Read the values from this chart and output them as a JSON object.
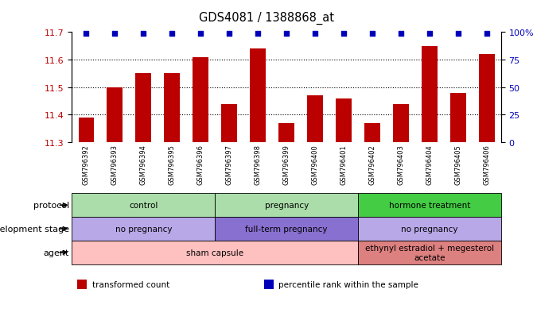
{
  "title": "GDS4081 / 1388868_at",
  "samples": [
    "GSM796392",
    "GSM796393",
    "GSM796394",
    "GSM796395",
    "GSM796396",
    "GSM796397",
    "GSM796398",
    "GSM796399",
    "GSM796400",
    "GSM796401",
    "GSM796402",
    "GSM796403",
    "GSM796404",
    "GSM796405",
    "GSM796406"
  ],
  "bar_values": [
    11.39,
    11.5,
    11.55,
    11.55,
    11.61,
    11.44,
    11.64,
    11.37,
    11.47,
    11.46,
    11.37,
    11.44,
    11.65,
    11.48,
    11.62
  ],
  "ylim_left": [
    11.3,
    11.7
  ],
  "ylim_right": [
    0,
    100
  ],
  "yticks_left": [
    11.3,
    11.4,
    11.5,
    11.6,
    11.7
  ],
  "yticks_right": [
    0,
    25,
    50,
    75,
    100
  ],
  "ytick_labels_right": [
    "0",
    "25",
    "50",
    "75",
    "100%"
  ],
  "bar_color": "#bb0000",
  "percentile_color": "#0000bb",
  "tick_label_area_bg": "#c8c8c8",
  "protocol_groups": [
    {
      "label": "control",
      "start": 0,
      "end": 4,
      "color": "#aaddaa"
    },
    {
      "label": "pregnancy",
      "start": 5,
      "end": 9,
      "color": "#aaddaa"
    },
    {
      "label": "hormone treatment",
      "start": 10,
      "end": 14,
      "color": "#44cc44"
    }
  ],
  "dev_stage_groups": [
    {
      "label": "no pregnancy",
      "start": 0,
      "end": 4,
      "color": "#b8a8e8"
    },
    {
      "label": "full-term pregnancy",
      "start": 5,
      "end": 9,
      "color": "#8870d0"
    },
    {
      "label": "no pregnancy",
      "start": 10,
      "end": 14,
      "color": "#b8a8e8"
    }
  ],
  "agent_groups": [
    {
      "label": "sham capsule",
      "start": 0,
      "end": 9,
      "color": "#ffc0c0"
    },
    {
      "label": "ethynyl estradiol + megesterol\nacetate",
      "start": 10,
      "end": 14,
      "color": "#dd8080"
    }
  ],
  "row_labels": [
    "protocol",
    "development stage",
    "agent"
  ],
  "legend_items": [
    {
      "color": "#bb0000",
      "label": "transformed count"
    },
    {
      "color": "#0000bb",
      "label": "percentile rank within the sample"
    }
  ],
  "gridline_yticks": [
    11.4,
    11.5,
    11.6
  ]
}
